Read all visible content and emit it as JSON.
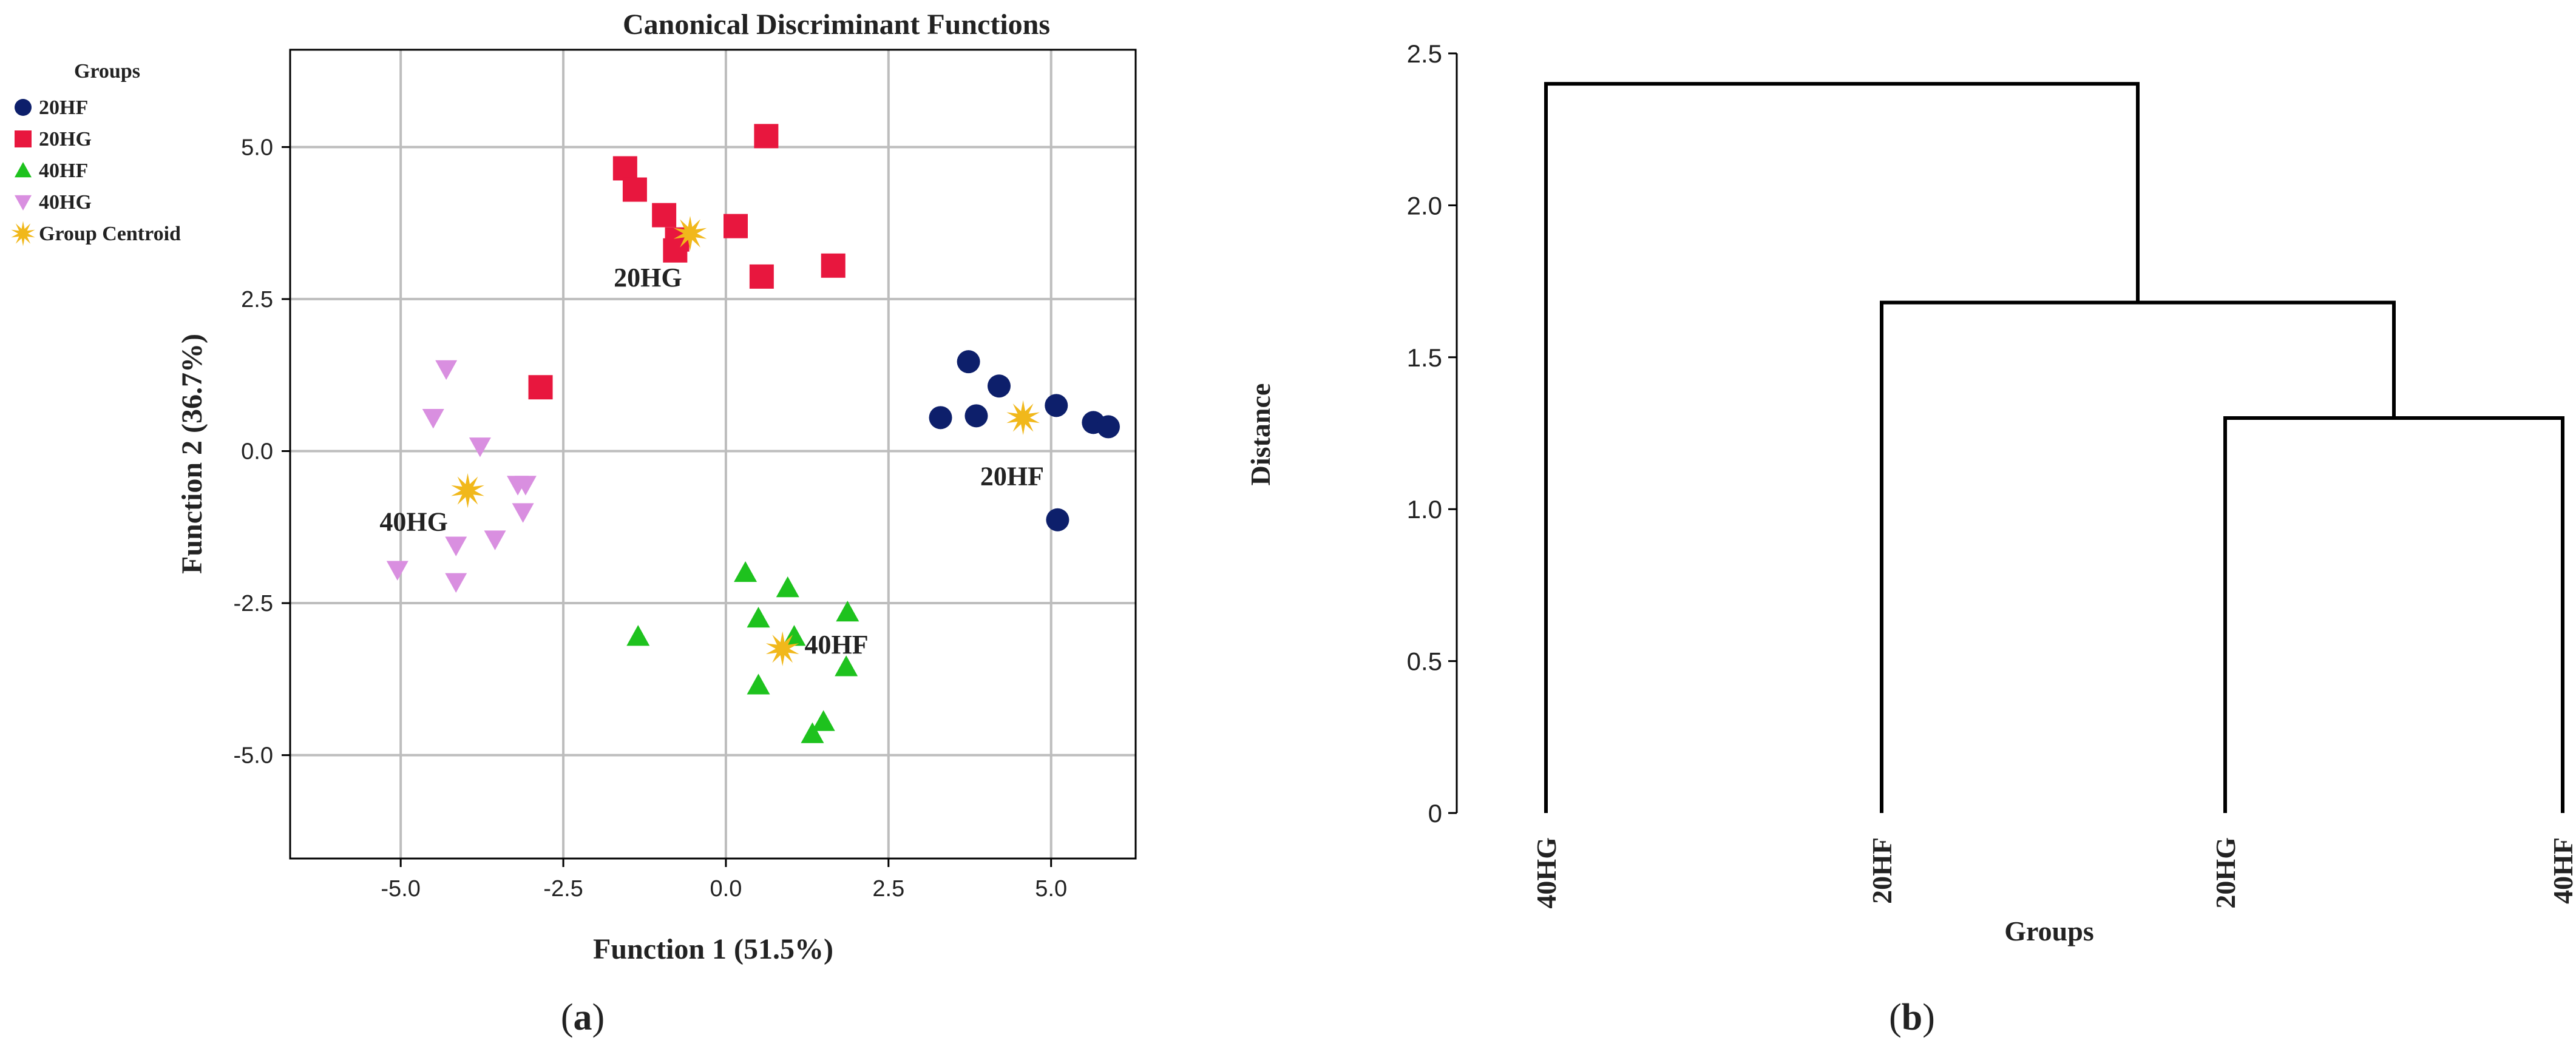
{
  "panels": {
    "a_label_open": "(",
    "a_label_letter": "a",
    "a_label_close": ")",
    "b_label_open": "(",
    "b_label_letter": "b",
    "b_label_close": ")"
  },
  "chart_data": [
    {
      "type": "scatter",
      "title": "Canonical Discriminant Functions",
      "xlabel": "Function 1 (51.5%)",
      "ylabel": "Function 2 (36.7%)",
      "xlim": [
        -6.7,
        6.3
      ],
      "ylim": [
        -6.7,
        6.6
      ],
      "xticks": [
        -5.0,
        -2.5,
        0.0,
        2.5,
        5.0
      ],
      "xtick_labels": [
        "-5.0",
        "-2.5",
        "0.0",
        "2.5",
        "5.0"
      ],
      "yticks": [
        -5.0,
        -2.5,
        0.0,
        2.5,
        5.0
      ],
      "ytick_labels": [
        "-5.0",
        "-2.5",
        "0.0",
        "2.5",
        "5.0"
      ],
      "grid": true,
      "legend_title": "Groups",
      "legend_position": "top-left outside",
      "series": [
        {
          "name": "20HF",
          "marker": "circle",
          "color": "#0d1f6b",
          "points": [
            [
              3.3,
              0.55
            ],
            [
              3.73,
              1.47
            ],
            [
              3.85,
              0.58
            ],
            [
              4.2,
              1.07
            ],
            [
              5.08,
              0.75
            ],
            [
              5.65,
              0.47
            ],
            [
              5.88,
              0.4
            ],
            [
              5.1,
              -1.13
            ]
          ]
        },
        {
          "name": "20HG",
          "marker": "square",
          "color": "#e8173e",
          "points": [
            [
              -1.55,
              4.65
            ],
            [
              -1.4,
              4.3
            ],
            [
              -0.95,
              3.88
            ],
            [
              -0.75,
              3.48
            ],
            [
              -0.78,
              3.3
            ],
            [
              0.15,
              3.7
            ],
            [
              0.62,
              5.18
            ],
            [
              0.55,
              2.87
            ],
            [
              1.65,
              3.05
            ],
            [
              -2.85,
              1.05
            ]
          ]
        },
        {
          "name": "40HF",
          "marker": "triangle-up",
          "color": "#1ec21e",
          "points": [
            [
              -1.35,
              -3.05
            ],
            [
              0.3,
              -2.0
            ],
            [
              0.5,
              -2.75
            ],
            [
              0.95,
              -2.25
            ],
            [
              1.05,
              -3.05
            ],
            [
              1.87,
              -2.65
            ],
            [
              1.85,
              -3.55
            ],
            [
              0.5,
              -3.85
            ],
            [
              1.5,
              -4.45
            ],
            [
              1.33,
              -4.65
            ]
          ]
        },
        {
          "name": "40HG",
          "marker": "triangle-down",
          "color": "#d98fe0",
          "points": [
            [
              -4.3,
              1.35
            ],
            [
              -4.5,
              0.55
            ],
            [
              -3.78,
              0.08
            ],
            [
              -3.2,
              -0.55
            ],
            [
              -3.08,
              -0.55
            ],
            [
              -3.12,
              -1.0
            ],
            [
              -3.55,
              -1.45
            ],
            [
              -4.15,
              -1.55
            ],
            [
              -4.15,
              -2.15
            ],
            [
              -5.05,
              -1.95
            ]
          ]
        },
        {
          "name": "Group Centroid",
          "marker": "star",
          "color": "#f1b81b",
          "points": [
            [
              4.57,
              0.55
            ],
            [
              -0.55,
              3.58
            ],
            [
              0.87,
              -3.25
            ],
            [
              -3.97,
              -0.65
            ]
          ]
        }
      ],
      "annotations": [
        {
          "text": "20HG",
          "x": -1.2,
          "y": 2.87
        },
        {
          "text": "20HF",
          "x": 4.4,
          "y": -0.4
        },
        {
          "text": "40HG",
          "x": -4.8,
          "y": -1.15
        },
        {
          "text": "40HF",
          "x": 1.7,
          "y": -3.17
        }
      ]
    },
    {
      "type": "dendrogram",
      "xlabel": "Groups",
      "ylabel": "Distance",
      "ylim": [
        0,
        2.5
      ],
      "yticks": [
        0,
        0.5,
        1.0,
        1.5,
        2.0,
        2.5
      ],
      "ytick_labels": [
        "0",
        "0.5",
        "1.0",
        "1.5",
        "2.0",
        "2.5"
      ],
      "leaves": [
        "40HG",
        "20HF",
        "20HG",
        "40HF"
      ],
      "merges": [
        {
          "left": "20HG",
          "right": "40HF",
          "height": 1.3
        },
        {
          "left": "20HF",
          "right": "20HG+40HF",
          "height": 1.68
        },
        {
          "left": "40HG",
          "right": "20HF+20HG+40HF",
          "height": 2.4
        }
      ]
    }
  ]
}
